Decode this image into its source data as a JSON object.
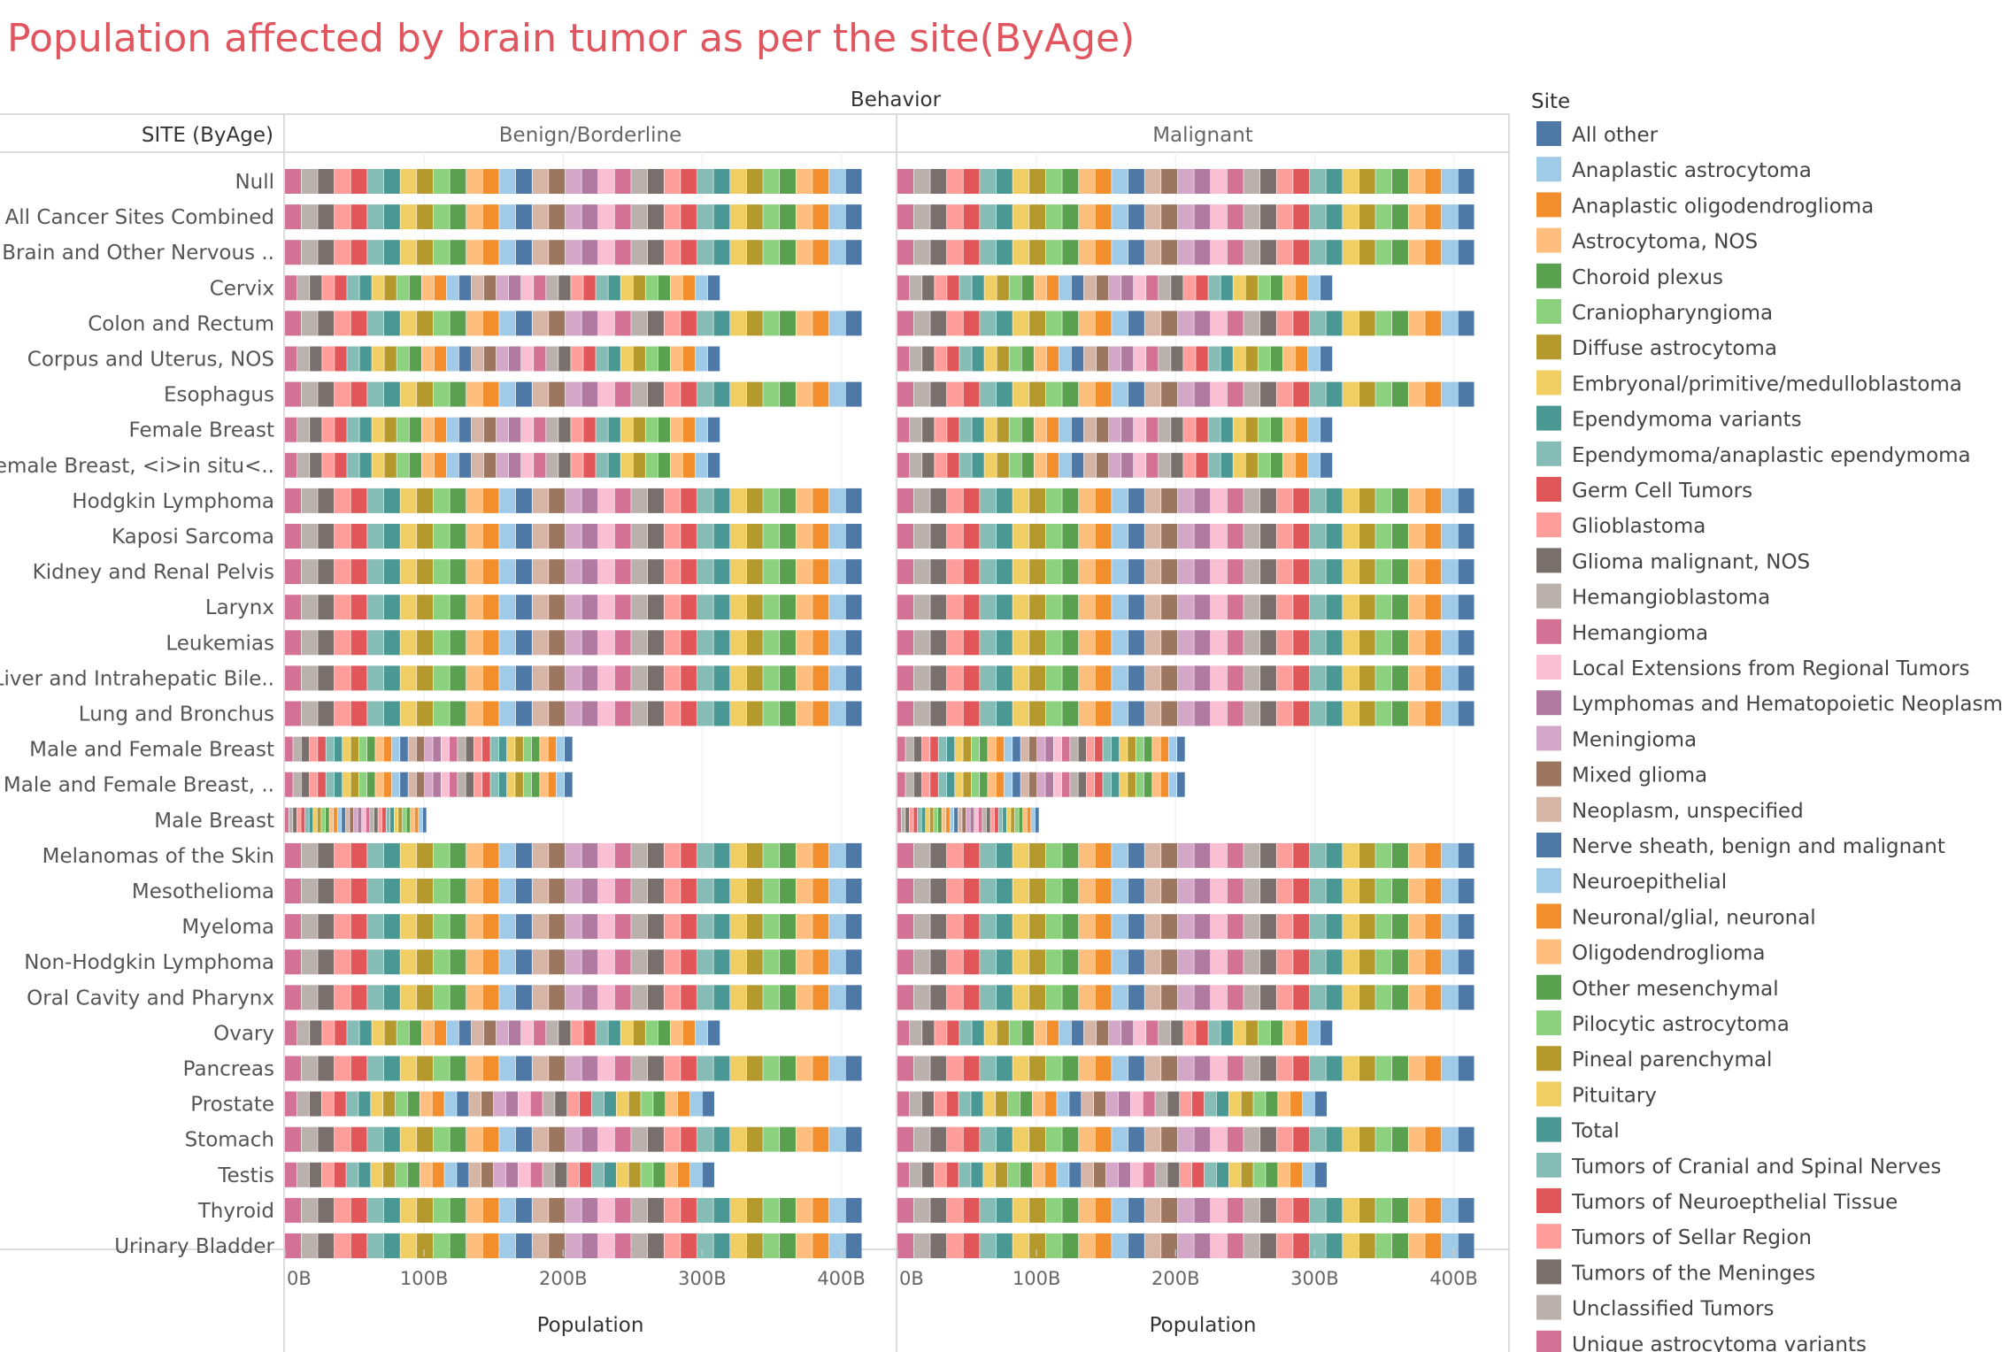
{
  "chart_data": {
    "type": "bar",
    "orientation": "horizontal-stacked",
    "title": "Population affected by brain tumor as per the site(ByAge)",
    "title_color": "#e0555e",
    "column_header": "Behavior",
    "row_header": "SITE (ByAge)",
    "panels": [
      "Benign/Borderline",
      "Malignant"
    ],
    "xlabel": "Population",
    "xticks": [
      "0B",
      "100B",
      "200B",
      "300B",
      "400B"
    ],
    "xlim": [
      0,
      420
    ],
    "legend": {
      "title": "Site",
      "placement": "right",
      "items": [
        {
          "label": "All other",
          "color": "#4e79a7"
        },
        {
          "label": "Anaplastic astrocytoma",
          "color": "#a0cbe8"
        },
        {
          "label": "Anaplastic oligodendroglioma",
          "color": "#f28e2b"
        },
        {
          "label": "Astrocytoma, NOS",
          "color": "#ffbe7d"
        },
        {
          "label": "Choroid plexus",
          "color": "#59a14f"
        },
        {
          "label": "Craniopharyngioma",
          "color": "#8cd17d"
        },
        {
          "label": "Diffuse astrocytoma",
          "color": "#b6992d"
        },
        {
          "label": "Embryonal/primitive/medulloblastoma",
          "color": "#f1ce63"
        },
        {
          "label": "Ependymoma variants",
          "color": "#499894"
        },
        {
          "label": "Ependymoma/anaplastic ependymoma",
          "color": "#86bcb6"
        },
        {
          "label": "Germ Cell Tumors",
          "color": "#e15759"
        },
        {
          "label": "Glioblastoma",
          "color": "#ff9d9a"
        },
        {
          "label": "Glioma malignant, NOS",
          "color": "#79706e"
        },
        {
          "label": "Hemangioblastoma",
          "color": "#bab0ac"
        },
        {
          "label": "Hemangioma",
          "color": "#d37295"
        },
        {
          "label": "Local Extensions from Regional Tumors",
          "color": "#fabfd2"
        },
        {
          "label": "Lymphomas and Hematopoietic Neoplasms",
          "color": "#b07aa1"
        },
        {
          "label": "Meningioma",
          "color": "#d4a6c8"
        },
        {
          "label": "Mixed glioma",
          "color": "#9d7660"
        },
        {
          "label": "Neoplasm, unspecified",
          "color": "#d7b5a6"
        },
        {
          "label": "Nerve sheath, benign and malignant",
          "color": "#4e79a7"
        },
        {
          "label": "Neuroepithelial",
          "color": "#a0cbe8"
        },
        {
          "label": "Neuronal/glial, neuronal",
          "color": "#f28e2b"
        },
        {
          "label": "Oligodendroglioma",
          "color": "#ffbe7d"
        },
        {
          "label": "Other mesenchymal",
          "color": "#59a14f"
        },
        {
          "label": "Pilocytic astrocytoma",
          "color": "#8cd17d"
        },
        {
          "label": "Pineal parenchymal",
          "color": "#b6992d"
        },
        {
          "label": "Pituitary",
          "color": "#f1ce63"
        },
        {
          "label": "Total",
          "color": "#499894"
        },
        {
          "label": "Tumors of Cranial and Spinal Nerves",
          "color": "#86bcb6"
        },
        {
          "label": "Tumors of Neuroepthelial Tissue",
          "color": "#e15759"
        },
        {
          "label": "Tumors of Sellar Region",
          "color": "#ff9d9a"
        },
        {
          "label": "Tumors of the Meninges",
          "color": "#79706e"
        },
        {
          "label": "Unclassified Tumors",
          "color": "#bab0ac"
        },
        {
          "label": "Unique astrocytoma variants",
          "color": "#d37295"
        }
      ]
    },
    "segment_cycle": [
      "#d37295",
      "#bab0ac",
      "#79706e",
      "#ff9d9a",
      "#e15759",
      "#86bcb6",
      "#499894",
      "#f1ce63",
      "#b6992d",
      "#8cd17d",
      "#59a14f",
      "#ffbe7d",
      "#f28e2b",
      "#a0cbe8",
      "#4e79a7",
      "#d7b5a6",
      "#9d7660",
      "#d4a6c8",
      "#b07aa1",
      "#fabfd2",
      "#d37295",
      "#bab0ac",
      "#79706e",
      "#ff9d9a",
      "#e15759",
      "#86bcb6",
      "#499894",
      "#f1ce63",
      "#b6992d",
      "#8cd17d",
      "#59a14f",
      "#ffbe7d",
      "#f28e2b",
      "#a0cbe8",
      "#4e79a7"
    ],
    "rows": [
      {
        "site": "Null",
        "benign": 415,
        "malignant": 415,
        "segments": 35
      },
      {
        "site": "All Cancer Sites Combined",
        "benign": 415,
        "malignant": 415,
        "segments": 35
      },
      {
        "site": "Brain and Other Nervous ..",
        "benign": 415,
        "malignant": 415,
        "segments": 35
      },
      {
        "site": "Cervix",
        "benign": 313,
        "malignant": 313,
        "segments": 35
      },
      {
        "site": "Colon and Rectum",
        "benign": 415,
        "malignant": 415,
        "segments": 35
      },
      {
        "site": "Corpus and Uterus, NOS",
        "benign": 313,
        "malignant": 313,
        "segments": 35
      },
      {
        "site": "Esophagus",
        "benign": 415,
        "malignant": 415,
        "segments": 35
      },
      {
        "site": "Female Breast",
        "benign": 313,
        "malignant": 313,
        "segments": 35
      },
      {
        "site": "Female Breast, <i>in situ<..",
        "benign": 313,
        "malignant": 313,
        "segments": 35
      },
      {
        "site": "Hodgkin Lymphoma",
        "benign": 415,
        "malignant": 415,
        "segments": 35
      },
      {
        "site": "Kaposi Sarcoma",
        "benign": 415,
        "malignant": 415,
        "segments": 35
      },
      {
        "site": "Kidney and Renal Pelvis",
        "benign": 415,
        "malignant": 415,
        "segments": 35
      },
      {
        "site": "Larynx",
        "benign": 415,
        "malignant": 415,
        "segments": 35
      },
      {
        "site": "Leukemias",
        "benign": 415,
        "malignant": 415,
        "segments": 35
      },
      {
        "site": "Liver and Intrahepatic Bile..",
        "benign": 415,
        "malignant": 415,
        "segments": 35
      },
      {
        "site": "Lung and Bronchus",
        "benign": 415,
        "malignant": 415,
        "segments": 35
      },
      {
        "site": "Male and Female Breast",
        "benign": 207,
        "malignant": 207,
        "segments": 35
      },
      {
        "site": "Male and Female Breast, ..",
        "benign": 207,
        "malignant": 207,
        "segments": 35
      },
      {
        "site": "Male Breast",
        "benign": 102,
        "malignant": 102,
        "segments": 35
      },
      {
        "site": "Melanomas of the Skin",
        "benign": 415,
        "malignant": 415,
        "segments": 35
      },
      {
        "site": "Mesothelioma",
        "benign": 415,
        "malignant": 415,
        "segments": 35
      },
      {
        "site": "Myeloma",
        "benign": 415,
        "malignant": 415,
        "segments": 35
      },
      {
        "site": "Non-Hodgkin Lymphoma",
        "benign": 415,
        "malignant": 415,
        "segments": 35
      },
      {
        "site": "Oral Cavity and Pharynx",
        "benign": 415,
        "malignant": 415,
        "segments": 35
      },
      {
        "site": "Ovary",
        "benign": 313,
        "malignant": 313,
        "segments": 35
      },
      {
        "site": "Pancreas",
        "benign": 415,
        "malignant": 415,
        "segments": 35
      },
      {
        "site": "Prostate",
        "benign": 309,
        "malignant": 309,
        "segments": 35
      },
      {
        "site": "Stomach",
        "benign": 415,
        "malignant": 415,
        "segments": 35
      },
      {
        "site": "Testis",
        "benign": 309,
        "malignant": 309,
        "segments": 35
      },
      {
        "site": "Thyroid",
        "benign": 415,
        "malignant": 415,
        "segments": 35
      },
      {
        "site": "Urinary Bladder",
        "benign": 415,
        "malignant": 415,
        "segments": 35
      }
    ]
  }
}
